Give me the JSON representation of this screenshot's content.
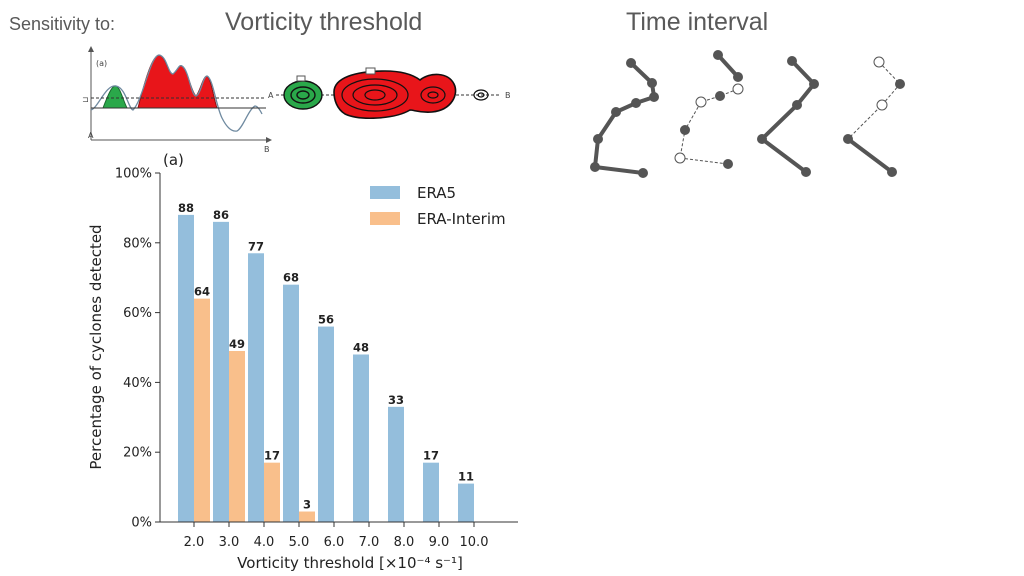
{
  "header": {
    "sensitivity_label": "Sensitivity to:",
    "vorticity_title": "Vorticity threshold",
    "time_title": "Time interval"
  },
  "inset": {
    "panel_label": "(a)",
    "point_a": "A",
    "point_b": "B"
  },
  "chart_data": {
    "type": "bar",
    "panel_label": "(a)",
    "categories": [
      "2.0",
      "3.0",
      "4.0",
      "5.0",
      "6.0",
      "7.0",
      "8.0",
      "9.0",
      "10.0"
    ],
    "series": [
      {
        "name": "ERA5",
        "color": "#94bedc",
        "values": [
          88,
          86,
          77,
          68,
          56,
          48,
          33,
          17,
          11
        ]
      },
      {
        "name": "ERA-Interim",
        "color": "#f9bf8b",
        "values": [
          64,
          49,
          17,
          3,
          null,
          null,
          null,
          null,
          null
        ]
      }
    ],
    "data_labels": {
      "ERA5": [
        "88",
        "86",
        "77",
        "68",
        "56",
        "48",
        "33",
        "17",
        "11"
      ],
      "ERA-Interim": [
        "64",
        "49",
        "17",
        "3",
        "",
        "",
        "",
        "",
        ""
      ]
    },
    "xlabel": "Vorticity threshold [×10⁻⁴ s⁻¹]",
    "ylabel": "Percentage of cyclones detected",
    "ylim": [
      0,
      100
    ],
    "yticks": [
      "0%",
      "20%",
      "40%",
      "60%",
      "80%",
      "100%"
    ],
    "grid": false,
    "legend": "top-right"
  }
}
